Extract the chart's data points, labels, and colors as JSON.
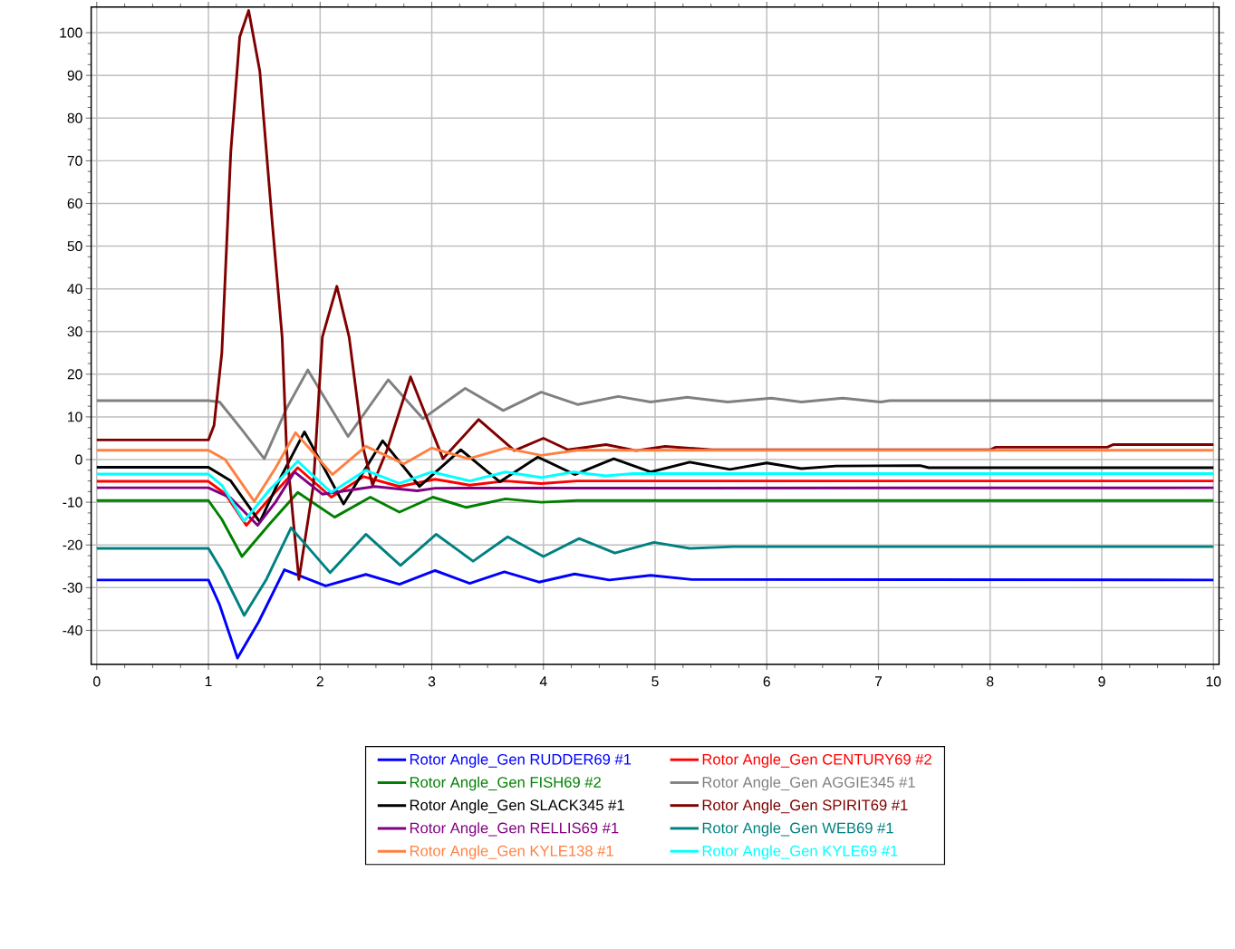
{
  "chart_data": {
    "type": "line",
    "xlim": [
      -0.05,
      10.05
    ],
    "ylim": [
      -48,
      106
    ],
    "xticks": [
      0,
      1,
      2,
      3,
      4,
      5,
      6,
      7,
      8,
      9,
      10
    ],
    "yticks": [
      -40,
      -30,
      -20,
      -10,
      0,
      10,
      20,
      30,
      40,
      50,
      60,
      70,
      80,
      90,
      100
    ],
    "grid": true,
    "legend": "bottom",
    "line_style": "solid",
    "series": [
      {
        "name": "Rotor Angle_Gen RUDDER69 #1",
        "color": "#0000ff",
        "x": [
          0,
          1.0,
          1.1,
          1.26,
          1.45,
          1.68,
          2.05,
          2.41,
          2.71,
          3.03,
          3.34,
          3.65,
          3.96,
          4.28,
          4.59,
          4.96,
          5.33,
          10
        ],
        "values": [
          -28.2,
          -28.2,
          -34,
          -46.5,
          -38,
          -25.8,
          -29.6,
          -26.9,
          -29.2,
          -26,
          -29,
          -26.3,
          -28.7,
          -26.8,
          -28.2,
          -27.1,
          -28.1,
          -28.2
        ]
      },
      {
        "name": "Rotor Angle_Gen CENTURY69 #2",
        "color": "#ff0000",
        "x": [
          0,
          1.0,
          1.15,
          1.34,
          1.55,
          1.8,
          2.1,
          2.39,
          2.71,
          3.03,
          3.34,
          3.66,
          3.98,
          4.3,
          10
        ],
        "values": [
          -5.1,
          -5.1,
          -8,
          -15.4,
          -9,
          -1.9,
          -8.8,
          -4.0,
          -6.3,
          -4.6,
          -6,
          -5,
          -5.6,
          -5.0,
          -5.0
        ]
      },
      {
        "name": "Rotor Angle_Gen FISH69 #2",
        "color": "#008000",
        "x": [
          0,
          1.0,
          1.12,
          1.3,
          1.55,
          1.8,
          2.13,
          2.45,
          2.71,
          3.01,
          3.31,
          3.66,
          3.98,
          4.3,
          10
        ],
        "values": [
          -9.6,
          -9.6,
          -14,
          -22.7,
          -15,
          -7.7,
          -13.5,
          -8.8,
          -12.3,
          -8.8,
          -11.2,
          -9.2,
          -10,
          -9.6,
          -9.6
        ]
      },
      {
        "name": "Rotor Angle_Gen AGGIE345 #1",
        "color": "#808080",
        "x": [
          0,
          1.0,
          1.1,
          1.3,
          1.5,
          1.7,
          1.89,
          2.25,
          2.61,
          2.92,
          3.3,
          3.64,
          3.98,
          4.31,
          4.67,
          4.96,
          5.29,
          5.65,
          6.04,
          6.31,
          6.68,
          7.02,
          7.1,
          10
        ],
        "values": [
          13.8,
          13.8,
          13.5,
          7,
          0.2,
          12,
          21.0,
          5.4,
          18.7,
          9.6,
          16.7,
          11.5,
          15.8,
          12.9,
          14.8,
          13.5,
          14.6,
          13.5,
          14.4,
          13.5,
          14.4,
          13.5,
          13.8,
          13.8
        ]
      },
      {
        "name": "Rotor Angle_Gen SLACK345 #1",
        "color": "#000000",
        "x": [
          0,
          1.0,
          1.2,
          1.46,
          1.65,
          1.86,
          2.21,
          2.56,
          2.89,
          3.26,
          3.61,
          3.95,
          4.28,
          4.63,
          4.96,
          5.31,
          5.67,
          6.0,
          6.31,
          6.62,
          7.37,
          7.45,
          10
        ],
        "values": [
          -1.8,
          -1.8,
          -5,
          -14.6,
          -4,
          6.5,
          -10.4,
          4.4,
          -6.3,
          2.3,
          -5.2,
          0.6,
          -3.5,
          0.2,
          -2.9,
          -0.6,
          -2.3,
          -0.8,
          -2.1,
          -1.5,
          -1.4,
          -1.9,
          -1.9
        ]
      },
      {
        "name": "Rotor Angle_Gen SPIRIT69 #1",
        "color": "#800000",
        "x": [
          0,
          1.0,
          1.05,
          1.12,
          1.2,
          1.28,
          1.36,
          1.46,
          1.57,
          1.66,
          1.7,
          1.81,
          1.94,
          2.02,
          2.15,
          2.26,
          2.39,
          2.47,
          2.6,
          2.81,
          3.1,
          3.42,
          3.74,
          4.0,
          4.22,
          4.56,
          4.83,
          5.09,
          5.51,
          8.0,
          8.05,
          9.05,
          9.1,
          10
        ],
        "values": [
          4.6,
          4.6,
          8,
          25,
          72,
          99,
          105.2,
          91,
          56,
          28.7,
          2.3,
          -28.1,
          -6,
          28.7,
          40.6,
          28.7,
          2.3,
          -6,
          2.3,
          19.4,
          0.2,
          9.4,
          2.1,
          5.0,
          2.3,
          3.5,
          2.1,
          3.1,
          2.3,
          2.3,
          2.9,
          2.9,
          3.5,
          3.5
        ]
      },
      {
        "name": "Rotor Angle_Gen RELLIS69 #1",
        "color": "#800080",
        "x": [
          0,
          1.0,
          1.2,
          1.44,
          1.6,
          1.77,
          2.02,
          2.49,
          2.87,
          3.03,
          10
        ],
        "values": [
          -6.6,
          -6.6,
          -9,
          -15.4,
          -10,
          -2.9,
          -8.1,
          -6.3,
          -7.3,
          -6.7,
          -6.6
        ]
      },
      {
        "name": "Rotor Angle_Gen WEB69 #1",
        "color": "#008080",
        "x": [
          0,
          1.0,
          1.12,
          1.32,
          1.52,
          1.74,
          2.09,
          2.41,
          2.72,
          3.04,
          3.37,
          3.68,
          4.0,
          4.32,
          4.64,
          4.99,
          5.31,
          5.7,
          10
        ],
        "values": [
          -20.8,
          -20.8,
          -26,
          -36.5,
          -28,
          -16,
          -26.5,
          -17.5,
          -24.8,
          -17.5,
          -23.8,
          -18.1,
          -22.7,
          -18.5,
          -21.9,
          -19.4,
          -20.8,
          -20.4,
          -20.4
        ]
      },
      {
        "name": "Rotor Angle_Gen KYLE138 #1",
        "color": "#ff8040",
        "x": [
          0,
          1.0,
          1.15,
          1.41,
          1.6,
          1.78,
          2.11,
          2.41,
          2.75,
          3.0,
          3.33,
          3.66,
          3.98,
          4.3,
          10
        ],
        "values": [
          2.2,
          2.2,
          0,
          -9.8,
          -2,
          6.3,
          -3.5,
          3.1,
          -1.0,
          2.7,
          0.2,
          2.7,
          1.0,
          2.2,
          2.2
        ]
      },
      {
        "name": "Rotor Angle_Gen KYLE69 #1",
        "color": "#00ffff",
        "x": [
          0,
          1.0,
          1.12,
          1.32,
          1.55,
          1.8,
          2.1,
          2.41,
          2.71,
          3.0,
          3.34,
          3.66,
          3.98,
          4.27,
          4.56,
          4.8,
          10
        ],
        "values": [
          -3.4,
          -3.4,
          -6,
          -14.4,
          -7,
          -0.4,
          -7.7,
          -2.5,
          -5.6,
          -2.9,
          -5.0,
          -2.9,
          -4.2,
          -2.9,
          -3.8,
          -3.3,
          -3.3
        ]
      }
    ]
  }
}
